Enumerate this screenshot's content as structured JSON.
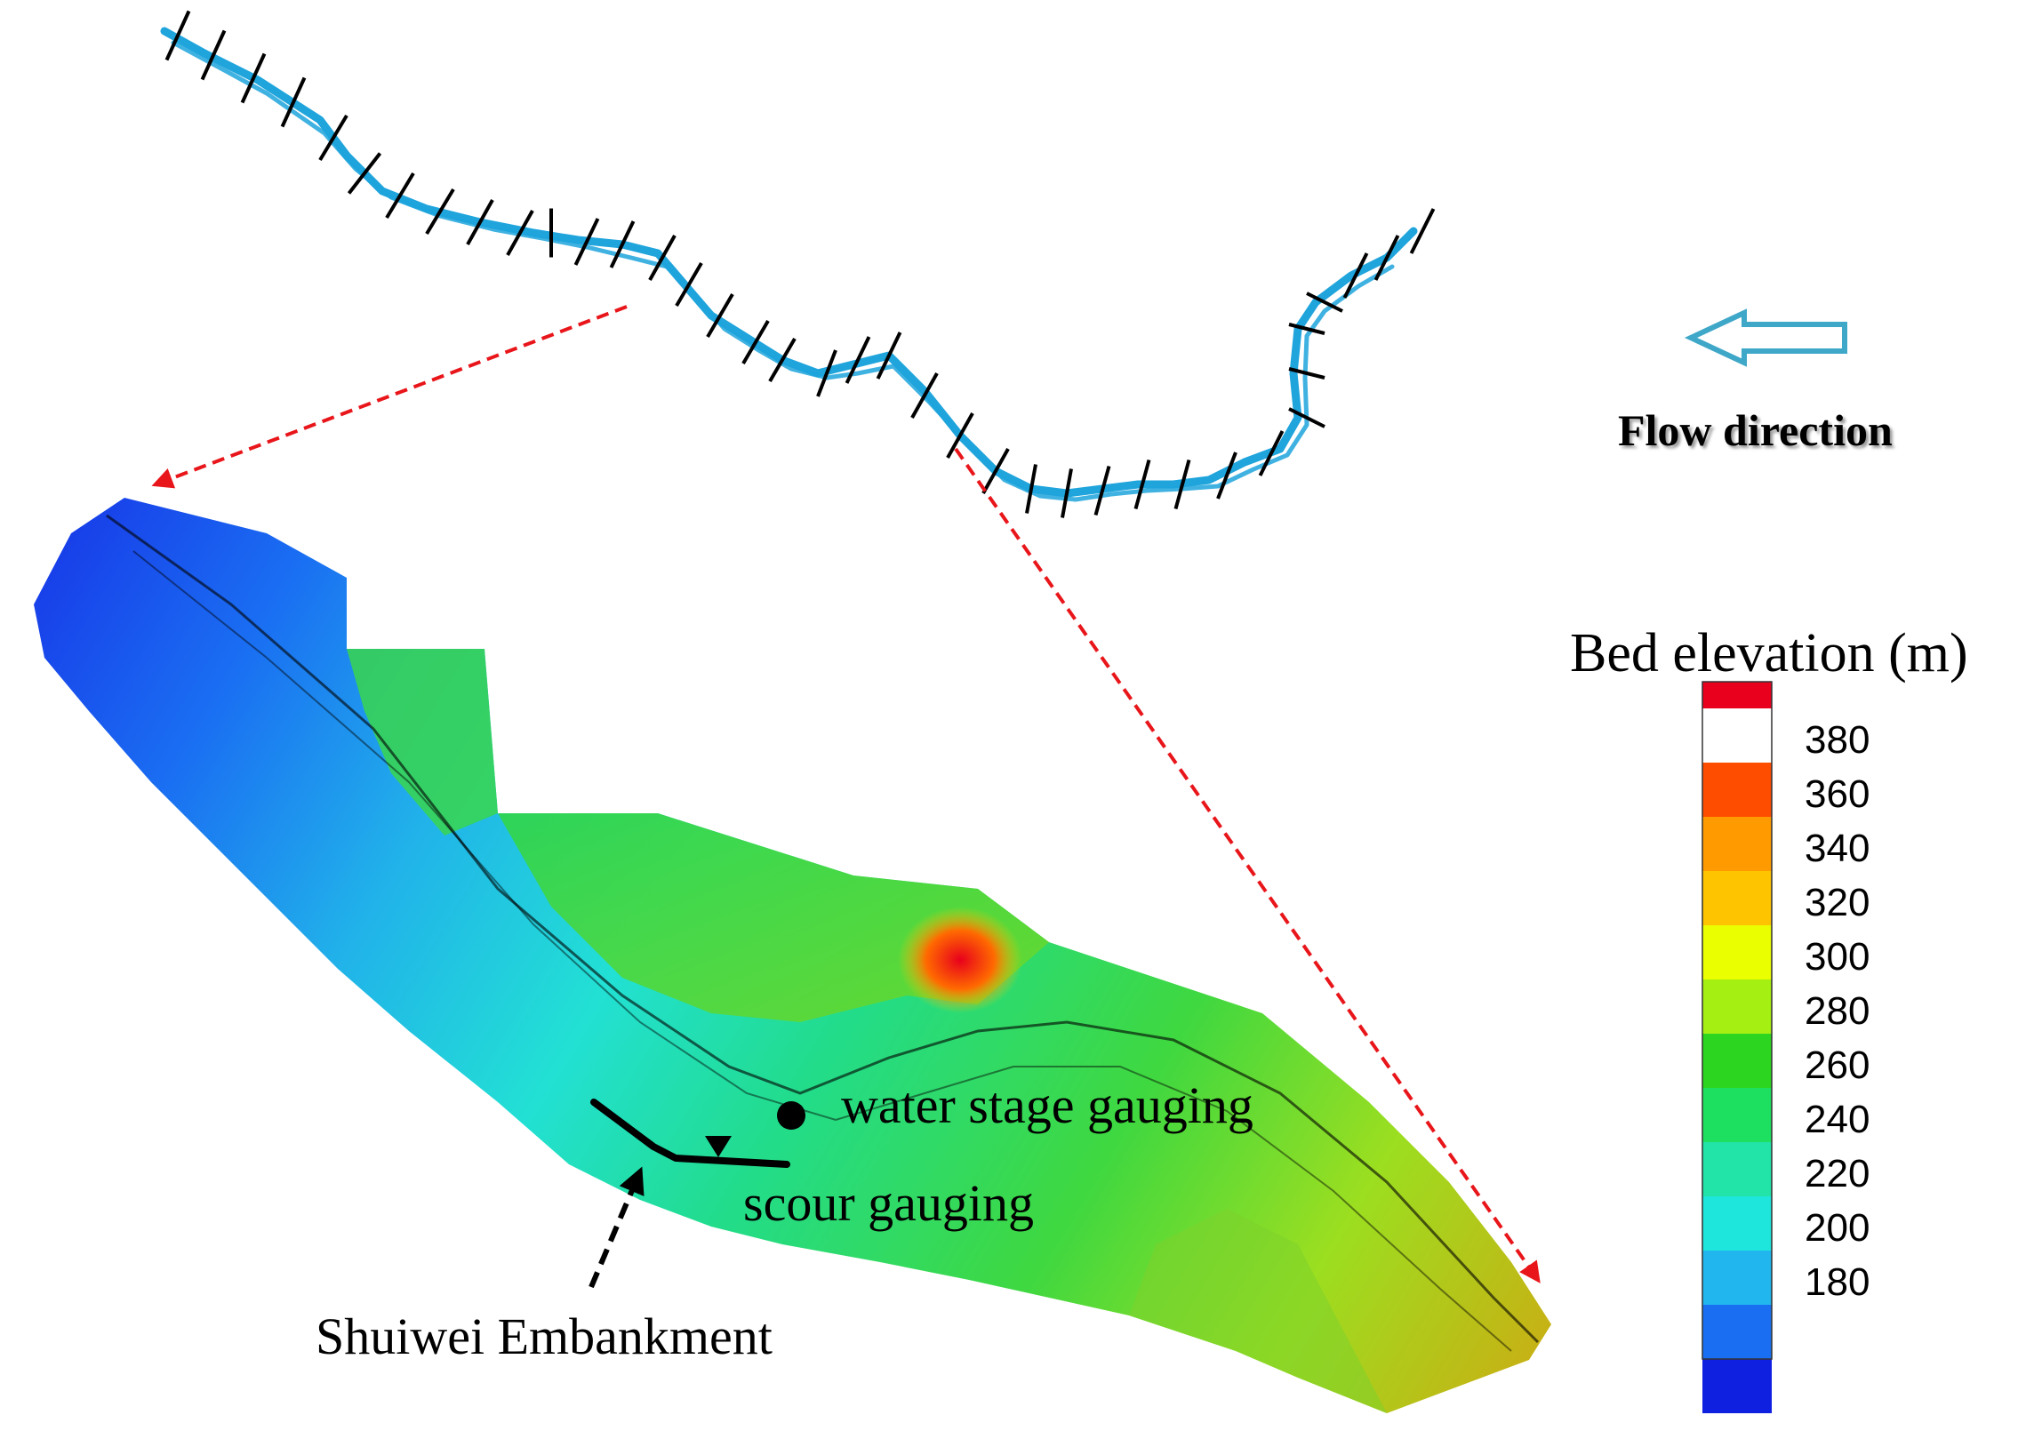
{
  "flow_direction_label": "Flow direction",
  "legend": {
    "title": "Bed elevation (m)",
    "ticks": [
      "380",
      "360",
      "340",
      "320",
      "300",
      "280",
      "260",
      "240",
      "220",
      "200",
      "180"
    ],
    "colors": [
      "#e8001c",
      "#ff4d00",
      "#ff9a00",
      "#ffc400",
      "#eaff00",
      "#a6ef12",
      "#2cd620",
      "#1ee060",
      "#22e4a8",
      "#1ee6dc",
      "#21b6ee",
      "#1a6ef2",
      "#1020e0"
    ]
  },
  "annotations": {
    "water_stage": "water stage gauging",
    "scour": "scour gauging",
    "embankment": "Shuiwei Embankment"
  },
  "colors": {
    "river": "#1fa4dc",
    "guide_arrows": "#e8161a",
    "flow_arrow": "#3fa7c8"
  },
  "icons": [
    "flow-direction-arrow-icon",
    "water-stage-gauging-dot-icon",
    "scour-gauging-triangle-icon"
  ]
}
